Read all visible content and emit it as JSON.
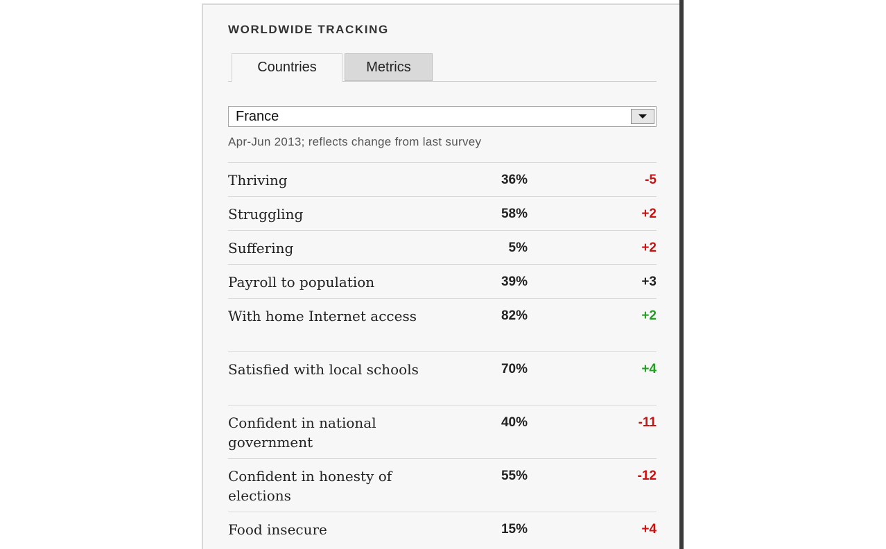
{
  "panel": {
    "title": "WORLDWIDE TRACKING",
    "tabs": [
      {
        "label": "Countries",
        "active": true
      },
      {
        "label": "Metrics",
        "active": false
      }
    ],
    "country_select": {
      "value": "France"
    },
    "note": "Apr-Jun 2013; reflects change from last survey",
    "rows": [
      {
        "label": "Thriving",
        "value": "36%",
        "change": "-5",
        "change_color": "#cc1111"
      },
      {
        "label": "Struggling",
        "value": "58%",
        "change": "+2",
        "change_color": "#cc1111"
      },
      {
        "label": "Suffering",
        "value": "5%",
        "change": "+2",
        "change_color": "#cc1111"
      },
      {
        "label": "Payroll to population",
        "value": "39%",
        "change": "+3",
        "change_color": "#222222"
      },
      {
        "label": "With home Internet access",
        "value": "82%",
        "change": "+2",
        "change_color": "#22a022"
      },
      {
        "label": "Satisfied with local schools",
        "value": "70%",
        "change": "+4",
        "change_color": "#22a022"
      },
      {
        "label": "Confident in national government",
        "value": "40%",
        "change": "-11",
        "change_color": "#cc1111"
      },
      {
        "label": "Confident in honesty of elections",
        "value": "55%",
        "change": "-12",
        "change_color": "#cc1111"
      },
      {
        "label": "Food insecure",
        "value": "15%",
        "change": "+4",
        "change_color": "#cc1111"
      }
    ]
  }
}
